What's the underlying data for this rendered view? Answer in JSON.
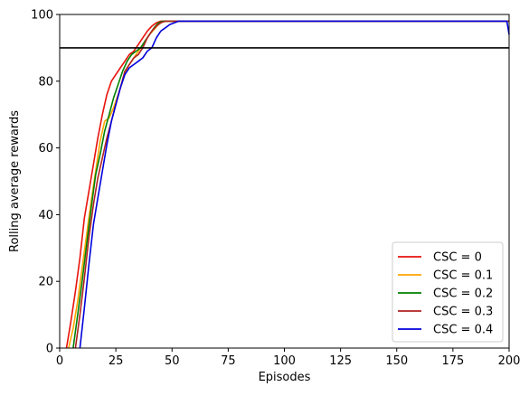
{
  "chart_data": {
    "type": "line",
    "xlabel": "Episodes",
    "ylabel": "Rolling average rewards",
    "xlim": [
      0,
      200
    ],
    "ylim": [
      0,
      100
    ],
    "xticks": [
      0,
      25,
      50,
      75,
      100,
      125,
      150,
      175,
      200
    ],
    "yticks": [
      0,
      20,
      40,
      60,
      80,
      100
    ],
    "grid": false,
    "legend_position": "lower-right",
    "threshold": {
      "y": 90,
      "color": "#000000"
    },
    "series": [
      {
        "name": "CSC = 0",
        "color": "#e8120c",
        "x": [
          3,
          5,
          7,
          9,
          11,
          13,
          15,
          17,
          19,
          21,
          23,
          25,
          27,
          29,
          31,
          33,
          35,
          37,
          39,
          41,
          43,
          45,
          50,
          100,
          150,
          200
        ],
        "y": [
          0,
          8,
          17,
          27,
          39,
          47,
          55,
          63,
          70,
          76,
          80,
          82,
          84,
          86,
          88,
          89,
          91,
          93,
          95,
          96.5,
          97.5,
          98,
          98,
          98,
          98,
          98
        ]
      },
      {
        "name": "CSC = 0.1",
        "color": "#ffa500",
        "x": [
          4,
          6,
          8,
          10,
          12,
          14,
          16,
          18,
          20,
          22,
          24,
          26,
          28,
          30,
          32,
          34,
          36,
          38,
          40,
          42,
          44,
          46,
          50,
          100,
          150,
          200
        ],
        "y": [
          0,
          6,
          14,
          24,
          34,
          44,
          53,
          62,
          68,
          69,
          72,
          76,
          80,
          84,
          86,
          88,
          90,
          92,
          94,
          95.5,
          97,
          98,
          98,
          98,
          98,
          98
        ]
      },
      {
        "name": "CSC = 0.2",
        "color": "#008000",
        "x": [
          6,
          8,
          10,
          12,
          14,
          16,
          18,
          20,
          22,
          24,
          26,
          28,
          30,
          32,
          34,
          36,
          38,
          40,
          42,
          44,
          46,
          50,
          100,
          150,
          200
        ],
        "y": [
          0,
          10,
          20,
          31,
          42,
          52,
          58,
          65,
          70,
          75,
          79,
          83,
          86,
          88,
          89,
          90,
          92,
          94,
          96,
          97.5,
          98,
          98,
          98,
          98,
          98
        ]
      },
      {
        "name": "CSC = 0.3",
        "color": "#b22222",
        "x": [
          7,
          9,
          11,
          13,
          15,
          17,
          19,
          21,
          23,
          25,
          27,
          29,
          31,
          33,
          35,
          37,
          39,
          41,
          43,
          45,
          47,
          50,
          100,
          150,
          200
        ],
        "y": [
          0,
          10,
          21,
          33,
          43,
          51,
          57,
          63,
          68,
          73,
          78,
          83,
          85,
          87,
          88,
          90,
          93,
          95,
          96.5,
          97.5,
          98,
          98,
          98,
          98,
          98
        ]
      },
      {
        "name": "CSC = 0.4",
        "color": "#0000dd",
        "x": [
          9,
          11,
          13,
          15,
          17,
          19,
          21,
          23,
          25,
          27,
          29,
          31,
          33,
          35,
          37,
          39,
          41,
          43,
          45,
          47,
          49,
          51,
          53,
          100,
          150,
          199,
          200
        ],
        "y": [
          0,
          12,
          25,
          37,
          45,
          53,
          61,
          68,
          73,
          78,
          82,
          84,
          85,
          86,
          87,
          89,
          90,
          93,
          95,
          96,
          97,
          97.5,
          98,
          98,
          98,
          98,
          94
        ]
      }
    ]
  }
}
